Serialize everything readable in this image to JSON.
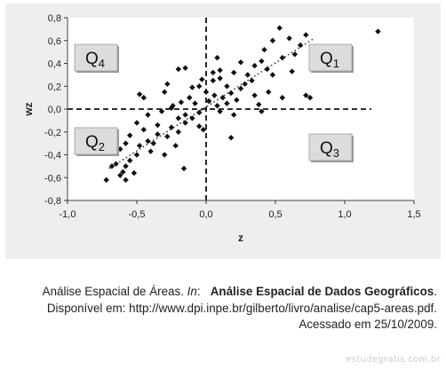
{
  "chart_data": {
    "type": "scatter",
    "xlabel": "z",
    "ylabel": "wz",
    "xlim": [
      -1.0,
      1.5
    ],
    "ylim": [
      -0.8,
      0.8
    ],
    "xticks": [
      "-1,0",
      "-0,5",
      "0,0",
      "0,5",
      "1,0",
      "1,5"
    ],
    "xtick_values": [
      -1.0,
      -0.5,
      0.0,
      0.5,
      1.0,
      1.5
    ],
    "yticks": [
      "0,8",
      "0,6",
      "0,4",
      "0,2",
      "0,0",
      "-0,2",
      "-0,4",
      "-0,6",
      "-0,8"
    ],
    "ytick_values": [
      0.8,
      0.6,
      0.4,
      0.2,
      0.0,
      -0.2,
      -0.4,
      -0.6,
      -0.8
    ],
    "grid": false,
    "quadrant_labels": [
      {
        "label": "Q",
        "sub": "4",
        "quadrant": "top-left"
      },
      {
        "label": "Q",
        "sub": "1",
        "quadrant": "top-right"
      },
      {
        "label": "Q",
        "sub": "2",
        "quadrant": "bottom-left"
      },
      {
        "label": "Q",
        "sub": "3",
        "quadrant": "bottom-right"
      }
    ],
    "points": [
      [
        1.24,
        0.68
      ],
      [
        0.53,
        0.71
      ],
      [
        0.72,
        0.65
      ],
      [
        0.6,
        0.62
      ],
      [
        0.48,
        0.6
      ],
      [
        0.68,
        0.56
      ],
      [
        0.42,
        0.52
      ],
      [
        0.64,
        0.48
      ],
      [
        0.84,
        0.44
      ],
      [
        0.9,
        0.45
      ],
      [
        0.55,
        0.45
      ],
      [
        0.4,
        0.42
      ],
      [
        0.35,
        0.38
      ],
      [
        0.25,
        0.41
      ],
      [
        0.44,
        0.35
      ],
      [
        0.62,
        0.33
      ],
      [
        0.3,
        0.3
      ],
      [
        0.2,
        0.32
      ],
      [
        0.33,
        0.25
      ],
      [
        0.1,
        0.34
      ],
      [
        0.05,
        0.32
      ],
      [
        -0.15,
        0.36
      ],
      [
        -0.2,
        0.35
      ],
      [
        0.1,
        0.27
      ],
      [
        0.05,
        0.25
      ],
      [
        -0.03,
        0.26
      ],
      [
        0.15,
        0.2
      ],
      [
        0.25,
        0.18
      ],
      [
        0.18,
        0.14
      ],
      [
        0.35,
        0.12
      ],
      [
        0.45,
        0.15
      ],
      [
        0.55,
        0.1
      ],
      [
        0.75,
        0.1
      ],
      [
        0.72,
        0.12
      ],
      [
        0.12,
        0.1
      ],
      [
        0.06,
        0.12
      ],
      [
        -0.05,
        0.2
      ],
      [
        -0.1,
        0.19
      ],
      [
        -0.28,
        0.22
      ],
      [
        -0.3,
        0.15
      ],
      [
        -0.45,
        0.1
      ],
      [
        -0.48,
        0.13
      ],
      [
        -0.12,
        0.1
      ],
      [
        -0.18,
        0.06
      ],
      [
        -0.24,
        0.03
      ],
      [
        -0.08,
        0.05
      ],
      [
        0.02,
        0.07
      ],
      [
        0.08,
        0.03
      ],
      [
        0.15,
        0.05
      ],
      [
        0.22,
        0.08
      ],
      [
        0.38,
        0.04
      ],
      [
        0.4,
        -0.02
      ],
      [
        0.2,
        -0.05
      ],
      [
        0.1,
        -0.02
      ],
      [
        -0.05,
        -0.03
      ],
      [
        -0.15,
        -0.05
      ],
      [
        -0.2,
        -0.08
      ],
      [
        -0.25,
        0.01
      ],
      [
        -0.32,
        -0.02
      ],
      [
        -0.42,
        -0.05
      ],
      [
        -0.5,
        -0.12
      ],
      [
        -0.35,
        -0.14
      ],
      [
        -0.15,
        -0.12
      ],
      [
        -0.05,
        -0.15
      ],
      [
        -0.02,
        -0.18
      ],
      [
        0.18,
        -0.25
      ],
      [
        -0.2,
        -0.2
      ],
      [
        -0.28,
        -0.24
      ],
      [
        -0.35,
        -0.22
      ],
      [
        -0.45,
        -0.18
      ],
      [
        -0.55,
        -0.23
      ],
      [
        -0.42,
        -0.28
      ],
      [
        -0.38,
        -0.3
      ],
      [
        -0.48,
        -0.32
      ],
      [
        -0.58,
        -0.3
      ],
      [
        -0.62,
        -0.35
      ],
      [
        -0.5,
        -0.4
      ],
      [
        -0.4,
        -0.37
      ],
      [
        -0.3,
        -0.4
      ],
      [
        -0.55,
        -0.45
      ],
      [
        -0.65,
        -0.48
      ],
      [
        -0.58,
        -0.5
      ],
      [
        -0.6,
        -0.55
      ],
      [
        -0.52,
        -0.56
      ],
      [
        -0.62,
        -0.58
      ],
      [
        -0.58,
        -0.62
      ],
      [
        -0.72,
        -0.62
      ],
      [
        -0.16,
        -0.52
      ],
      [
        -0.68,
        -0.5
      ],
      [
        -0.22,
        -0.32
      ],
      [
        -0.1,
        -0.08
      ],
      [
        0.0,
        0.15
      ],
      [
        0.28,
        0.22
      ],
      [
        0.48,
        0.3
      ],
      [
        0.08,
        0.45
      ],
      [
        -0.25,
        -0.16
      ]
    ]
  },
  "colors": {
    "panel_bg": "#eeeeee",
    "plot_bg": "#ffffff",
    "marker": "#111111",
    "trendline": "#333333",
    "box_bg": "#dcdcdc"
  },
  "caption": {
    "line1_part1": "Análise Espacial de Áreas. ",
    "line1_in": "In",
    "line1_part2": ":   ",
    "line1_bold": "Análise Espacial de Dados Geográficos",
    "line1_end": ".",
    "line2": "Disponível em: http://www.dpi.inpe.br/gilberto/livro/analise/cap5-areas.pdf.",
    "line3": "Acessado em 25/10/2009."
  },
  "watermark": "estudegratis.com.br"
}
